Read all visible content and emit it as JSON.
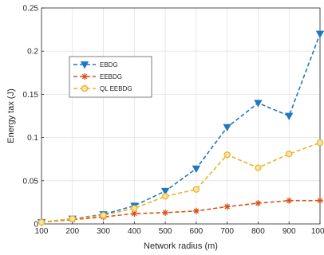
{
  "chart_data": {
    "type": "line",
    "xlabel": "Network radius (m)",
    "ylabel": "Energy tax (J)",
    "xlim": [
      100,
      1000
    ],
    "ylim": [
      0,
      0.25
    ],
    "xticks": [
      100,
      200,
      300,
      400,
      500,
      600,
      700,
      800,
      900,
      1000
    ],
    "xtick_labels": [
      "100",
      "200",
      "300",
      "400",
      "500",
      "600",
      "700",
      "800",
      "900",
      "1000"
    ],
    "yticks": [
      0,
      0.05,
      0.1,
      0.15,
      0.2,
      0.25
    ],
    "ytick_labels": [
      "0",
      "0.05",
      "0.1",
      "0.15",
      "0.2",
      "0.25"
    ],
    "grid": true,
    "legend_position": "upper-left",
    "x": [
      100,
      200,
      300,
      400,
      500,
      600,
      700,
      800,
      900,
      1000
    ],
    "series": [
      {
        "name": "EBDG",
        "values": [
          0.002,
          0.006,
          0.011,
          0.021,
          0.038,
          0.064,
          0.112,
          0.14,
          0.125,
          0.22
        ],
        "color": "#1f77c4",
        "marker": "triangle-down",
        "line_style": "dashed"
      },
      {
        "name": "EEBDG",
        "values": [
          0.002,
          0.005,
          0.008,
          0.012,
          0.013,
          0.015,
          0.02,
          0.024,
          0.027,
          0.027
        ],
        "color": "#d95319",
        "marker": "asterisk",
        "line_style": "dashed"
      },
      {
        "name": "QL EEBDG",
        "values": [
          0.002,
          0.006,
          0.01,
          0.018,
          0.032,
          0.04,
          0.08,
          0.065,
          0.081,
          0.094
        ],
        "color": "#edb120",
        "marker": "circle",
        "line_style": "dashed"
      }
    ]
  }
}
